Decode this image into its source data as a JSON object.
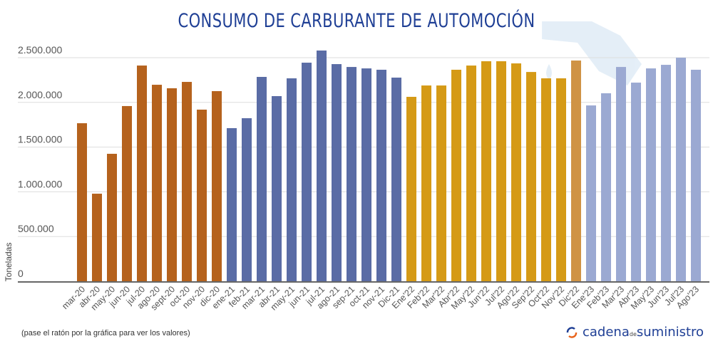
{
  "chart_data": {
    "type": "bar",
    "title": "CONSUMO DE CARBURANTE DE AUTOMOCIÓN",
    "xlabel": "",
    "ylabel": "Toneladas",
    "ylim": [
      0,
      2500000
    ],
    "yticks": [
      "0",
      "500.000",
      "1.000.000",
      "1.500.000",
      "2.000.000",
      "2.500.000"
    ],
    "ytick_values": [
      0,
      500000,
      1000000,
      1500000,
      2000000,
      2500000
    ],
    "grid": true,
    "categories": [
      "mar-20",
      "abr-20",
      "may-20",
      "jun-20",
      "jul-20",
      "ago-20",
      "sept-20",
      "oct-20",
      "nov-20",
      "dic-20",
      "ene-21",
      "feb-21",
      "mar-21",
      "abr-21",
      "may-21",
      "jun-21",
      "jul-21",
      "ago-21",
      "sep-21",
      "oct-21",
      "nov-21",
      "Dic-21",
      "Ene'22",
      "Feb'22",
      "Mar'22",
      "Abr'22",
      "May'22",
      "Jun'22",
      "Jul'22",
      "Ago'22",
      "Sep'22",
      "Oct'22",
      "Nov'22",
      "Dic'22",
      "Ene'23",
      "Feb'23",
      "Mar'23",
      "Abr'23",
      "May'23",
      "Jun'23",
      "Jul'23",
      "Ago'23"
    ],
    "values": [
      1767000,
      979000,
      1425000,
      1959000,
      2412000,
      2197000,
      2158000,
      2229000,
      1919000,
      2126000,
      1712000,
      1823000,
      2285000,
      2070000,
      2269000,
      2444000,
      2580000,
      2428000,
      2396000,
      2380000,
      2365000,
      2277000,
      2062000,
      2189000,
      2189000,
      2365000,
      2412000,
      2460000,
      2460000,
      2436000,
      2340000,
      2269000,
      2269000,
      2468000,
      1966000,
      2102000,
      2396000,
      2221000,
      2380000,
      2420000,
      2500000,
      2365000
    ],
    "colors": [
      "#b5621d",
      "#b5621d",
      "#b5621d",
      "#b5621d",
      "#b5621d",
      "#b5621d",
      "#b5621d",
      "#b5621d",
      "#b5621d",
      "#b5621d",
      "#5a6ca5",
      "#5a6ca5",
      "#5a6ca5",
      "#5a6ca5",
      "#5a6ca5",
      "#5a6ca5",
      "#5a6ca5",
      "#5a6ca5",
      "#5a6ca5",
      "#5a6ca5",
      "#5a6ca5",
      "#5a6ca5",
      "#d59a16",
      "#d59a16",
      "#d59a16",
      "#d59a16",
      "#d59a16",
      "#d59a16",
      "#d59a16",
      "#d59a16",
      "#d59a16",
      "#d59a16",
      "#d59a16",
      "#cf9345",
      "#9ba9d2",
      "#9ba9d2",
      "#9ba9d2",
      "#9ba9d2",
      "#9ba9d2",
      "#9ba9d2",
      "#9ba9d2",
      "#9ba9d2"
    ]
  },
  "footer": {
    "note": "(pase el ratón por la gráfica para ver los valores)",
    "logo_text_1": "cadena",
    "logo_text_2": "de",
    "logo_text_3": "suministro"
  }
}
